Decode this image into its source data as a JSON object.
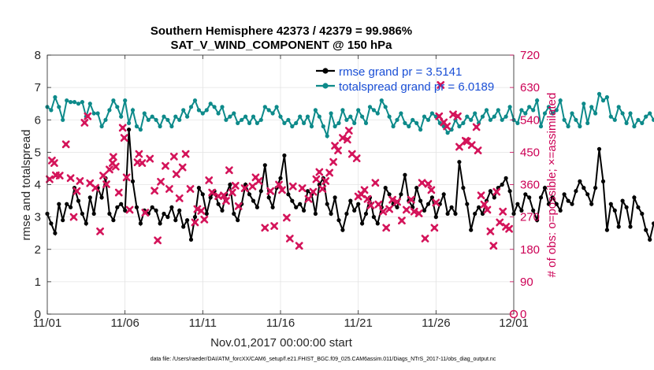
{
  "chart_data": {
    "type": "line",
    "title": "Southern Hemisphere 42373 / 42379 = 99.986%",
    "subtitle": "SAT_V_WIND_COMPONENT @ 150 hPa",
    "xlabel": "Nov.01,2017 00:00:00 start",
    "ylabel": "rmse and totalspread",
    "y2label": "# of obs: o=possible; ×=assimilated",
    "footer": "data file: /Users/raeder/DAI/ATM_forcXX/CAM6_setup/f.e21.FHIST_BGC.f09_025.CAM6assim.011/Diags_NTrS_2017-11/obs_diag_output.nc",
    "xlim": [
      0,
      30
    ],
    "ylim": [
      0,
      8
    ],
    "y2lim": [
      0,
      720
    ],
    "xticks": [
      0,
      5,
      10,
      15,
      20,
      25,
      30
    ],
    "xtick_labels": [
      "11/01",
      "11/06",
      "11/11",
      "11/16",
      "11/21",
      "11/26",
      "12/01"
    ],
    "yticks": [
      0,
      1,
      2,
      3,
      4,
      5,
      6,
      7,
      8
    ],
    "ytick_labels": [
      "0",
      "1",
      "2",
      "3",
      "4",
      "5",
      "6",
      "7",
      "8"
    ],
    "y2ticks": [
      0,
      90,
      180,
      270,
      360,
      450,
      540,
      630,
      720
    ],
    "y2tick_labels": [
      "0",
      "90",
      "180",
      "270",
      "360",
      "450",
      "540",
      "630",
      "720"
    ],
    "grid": true,
    "legend_position": "top-right",
    "colors": {
      "rmse": "#000000",
      "spread": "#0d8a8a",
      "obs": "#d4145a",
      "legend_text": "#1a4fd6",
      "right_axis": "#cc0055"
    },
    "series": [
      {
        "name": "rmse grand pr = 3.5141",
        "axis": "left",
        "marker": "circle",
        "step": 0.25,
        "values": [
          3.1,
          2.8,
          2.5,
          3.4,
          2.9,
          3.4,
          3.3,
          3.9,
          3.5,
          3.1,
          2.8,
          3.6,
          3.1,
          3.9,
          3.6,
          4.2,
          3.1,
          2.9,
          3.3,
          3.4,
          3.2,
          5.7,
          4.1,
          3.3,
          2.8,
          3.2,
          3.1,
          3.3,
          3.2,
          2.8,
          3.1,
          3.0,
          3.3,
          2.9,
          3.2,
          2.7,
          2.9,
          2.3,
          3.0,
          3.9,
          3.7,
          3.1,
          3.6,
          3.8,
          3.4,
          3.2,
          3.7,
          4.0,
          3.1,
          2.9,
          3.4,
          4.0,
          3.7,
          3.5,
          3.3,
          3.8,
          4.6,
          3.6,
          3.3,
          3.9,
          4.2,
          4.9,
          3.7,
          3.5,
          3.3,
          3.4,
          3.2,
          3.8,
          3.7,
          3.1,
          4.0,
          4.2,
          3.4,
          3.1,
          3.6,
          2.9,
          2.6,
          3.1,
          3.5,
          3.2,
          3.4,
          2.8,
          3.1,
          3.6,
          3.0,
          2.8,
          3.3,
          3.9,
          3.7,
          3.4,
          3.3,
          3.7,
          4.3,
          3.5,
          3.3,
          3.9,
          3.5,
          3.2,
          3.4,
          3.6,
          3.0,
          3.4,
          3.7,
          3.1,
          3.3,
          3.1,
          4.7,
          3.9,
          3.4,
          2.6,
          3.1,
          3.3,
          3.1,
          3.5,
          3.8,
          3.6,
          3.9,
          4.0,
          4.2,
          3.8,
          3.1,
          3.4,
          3.2,
          3.7,
          3.6,
          3.2,
          2.9,
          3.6,
          3.9,
          3.4,
          3.6,
          3.4,
          3.2,
          3.7,
          3.5,
          3.4,
          3.8,
          4.1,
          3.9,
          3.7,
          3.4,
          3.9,
          5.1,
          4.1,
          2.6,
          3.4,
          3.2,
          2.7,
          3.5,
          3.3,
          2.7,
          3.6,
          3.3,
          3.1,
          2.6,
          2.3,
          2.8,
          2.6,
          3.1,
          3.4,
          3.9,
          4.0,
          2.8,
          3.3,
          4.8
        ]
      },
      {
        "name": "totalspread grand pr = 6.0189",
        "axis": "left",
        "marker": "circle",
        "step": 0.25,
        "values": [
          6.4,
          6.3,
          6.7,
          6.4,
          6.0,
          6.6,
          6.55,
          6.55,
          6.5,
          6.55,
          6.1,
          6.5,
          6.2,
          6.2,
          5.8,
          6.0,
          6.3,
          6.6,
          6.4,
          6.1,
          6.6,
          5.9,
          6.3,
          5.8,
          5.7,
          6.2,
          6.0,
          6.1,
          6.0,
          5.8,
          6.1,
          6.0,
          5.8,
          6.1,
          6.0,
          6.3,
          6.1,
          6.4,
          6.6,
          6.3,
          6.2,
          6.3,
          6.5,
          6.4,
          6.2,
          6.4,
          6.0,
          6.1,
          6.2,
          5.9,
          6.0,
          6.1,
          5.9,
          6.1,
          5.9,
          6.0,
          6.4,
          6.3,
          6.2,
          6.4,
          6.1,
          5.9,
          6.0,
          5.8,
          5.9,
          6.1,
          5.9,
          6.1,
          5.8,
          6.3,
          6.1,
          5.8,
          5.5,
          6.2,
          5.8,
          5.9,
          6.3,
          6.0,
          6.1,
          5.9,
          6.3,
          6.1,
          5.9,
          6.4,
          6.3,
          6.2,
          6.6,
          6.4,
          6.1,
          5.8,
          6.0,
          6.2,
          5.9,
          5.8,
          6.0,
          5.9,
          5.7,
          6.1,
          6.0,
          6.2,
          6.1,
          5.9,
          5.8,
          5.6,
          5.7,
          6.0,
          5.8,
          5.9,
          6.1,
          6.0,
          6.2,
          5.9,
          6.1,
          6.3,
          6.0,
          6.1,
          6.3,
          6.0,
          6.1,
          6.4,
          6.0,
          5.9,
          6.3,
          6.2,
          6.4,
          6.3,
          6.6,
          5.8,
          6.2,
          6.4,
          6.2,
          6.3,
          6.6,
          6.0,
          5.8,
          6.2,
          6.0,
          5.8,
          6.5,
          5.9,
          6.4,
          6.2,
          6.8,
          6.6,
          6.7,
          6.1,
          6.0,
          6.4,
          6.2,
          5.9,
          6.2,
          5.8,
          6.0,
          5.9,
          6.1,
          6.2,
          6.0,
          6.2,
          6.0,
          6.1,
          6.4,
          6.0,
          6.2,
          6.3,
          5.7,
          5.9,
          6.1
        ]
      }
    ],
    "scatter_obs": {
      "name": "# of obs assimilated",
      "axis": "right",
      "marker": "x",
      "points": [
        [
          0.15,
          375
        ],
        [
          0.3,
          427
        ],
        [
          0.45,
          420
        ],
        [
          0.55,
          386
        ],
        [
          0.8,
          385
        ],
        [
          1.2,
          472
        ],
        [
          1.5,
          378
        ],
        [
          1.7,
          270
        ],
        [
          1.9,
          342
        ],
        [
          2.1,
          370
        ],
        [
          2.4,
          532
        ],
        [
          2.6,
          550
        ],
        [
          2.75,
          364
        ],
        [
          3.1,
          351
        ],
        [
          3.4,
          230
        ],
        [
          3.6,
          385
        ],
        [
          3.8,
          361
        ],
        [
          4.0,
          402
        ],
        [
          4.2,
          420
        ],
        [
          4.25,
          437
        ],
        [
          4.4,
          410
        ],
        [
          4.6,
          338
        ],
        [
          4.85,
          518
        ],
        [
          4.95,
          490
        ],
        [
          5.1,
          380
        ],
        [
          5.3,
          290
        ],
        [
          5.8,
          422
        ],
        [
          5.9,
          445
        ],
        [
          6.1,
          420
        ],
        [
          6.3,
          282
        ],
        [
          6.6,
          432
        ],
        [
          6.9,
          343
        ],
        [
          7.1,
          205
        ],
        [
          7.3,
          368
        ],
        [
          7.6,
          412
        ],
        [
          7.85,
          348
        ],
        [
          8.15,
          438
        ],
        [
          8.3,
          389
        ],
        [
          8.5,
          322
        ],
        [
          8.7,
          408
        ],
        [
          8.9,
          445
        ],
        [
          9.2,
          348
        ],
        [
          9.5,
          255
        ],
        [
          9.65,
          292
        ],
        [
          9.9,
          287
        ],
        [
          10.1,
          263
        ],
        [
          10.4,
          372
        ],
        [
          10.6,
          338
        ],
        [
          11.0,
          328
        ],
        [
          11.35,
          330
        ],
        [
          11.5,
          315
        ],
        [
          11.7,
          400
        ],
        [
          11.9,
          338
        ],
        [
          12.1,
          357
        ],
        [
          12.3,
          300
        ],
        [
          12.7,
          350
        ],
        [
          13.2,
          355
        ],
        [
          13.4,
          380
        ],
        [
          13.6,
          370
        ],
        [
          14.0,
          240
        ],
        [
          14.35,
          342
        ],
        [
          14.6,
          245
        ],
        [
          14.9,
          360
        ],
        [
          15.1,
          345
        ],
        [
          15.4,
          268
        ],
        [
          15.6,
          210
        ],
        [
          15.8,
          355
        ],
        [
          16.2,
          190
        ],
        [
          16.4,
          350
        ],
        [
          16.8,
          320
        ],
        [
          17.1,
          340
        ],
        [
          17.3,
          375
        ],
        [
          17.5,
          395
        ],
        [
          17.7,
          348
        ],
        [
          17.9,
          370
        ],
        [
          18.15,
          393
        ],
        [
          18.4,
          423
        ],
        [
          18.5,
          468
        ],
        [
          18.7,
          455
        ],
        [
          19.0,
          490
        ],
        [
          19.3,
          485
        ],
        [
          19.4,
          510
        ],
        [
          19.6,
          445
        ],
        [
          19.9,
          433
        ],
        [
          20.0,
          327
        ],
        [
          20.2,
          333
        ],
        [
          20.4,
          345
        ],
        [
          20.6,
          320
        ],
        [
          20.8,
          302
        ],
        [
          21.1,
          365
        ],
        [
          21.3,
          305
        ],
        [
          21.6,
          285
        ],
        [
          21.8,
          240
        ],
        [
          22.0,
          292
        ],
        [
          22.2,
          318
        ],
        [
          22.5,
          312
        ],
        [
          22.8,
          260
        ],
        [
          23.1,
          290
        ],
        [
          23.4,
          318
        ],
        [
          23.6,
          285
        ],
        [
          23.9,
          280
        ],
        [
          24.1,
          365
        ],
        [
          24.3,
          210
        ],
        [
          24.5,
          362
        ],
        [
          24.7,
          345
        ],
        [
          24.9,
          240
        ],
        [
          25.0,
          310
        ],
        [
          25.2,
          550
        ],
        [
          25.3,
          637
        ],
        [
          25.5,
          533
        ],
        [
          25.7,
          522
        ],
        [
          26.1,
          555
        ],
        [
          26.4,
          550
        ],
        [
          26.5,
          465
        ],
        [
          26.9,
          482
        ],
        [
          27.0,
          480
        ],
        [
          27.3,
          470
        ],
        [
          27.6,
          520
        ],
        [
          27.7,
          455
        ],
        [
          27.9,
          330
        ],
        [
          28.1,
          305
        ],
        [
          28.3,
          290
        ],
        [
          28.5,
          230
        ],
        [
          28.7,
          190
        ],
        [
          28.9,
          340
        ],
        [
          29.1,
          255
        ],
        [
          29.3,
          285
        ],
        [
          29.5,
          243
        ],
        [
          29.7,
          237
        ]
      ]
    }
  }
}
